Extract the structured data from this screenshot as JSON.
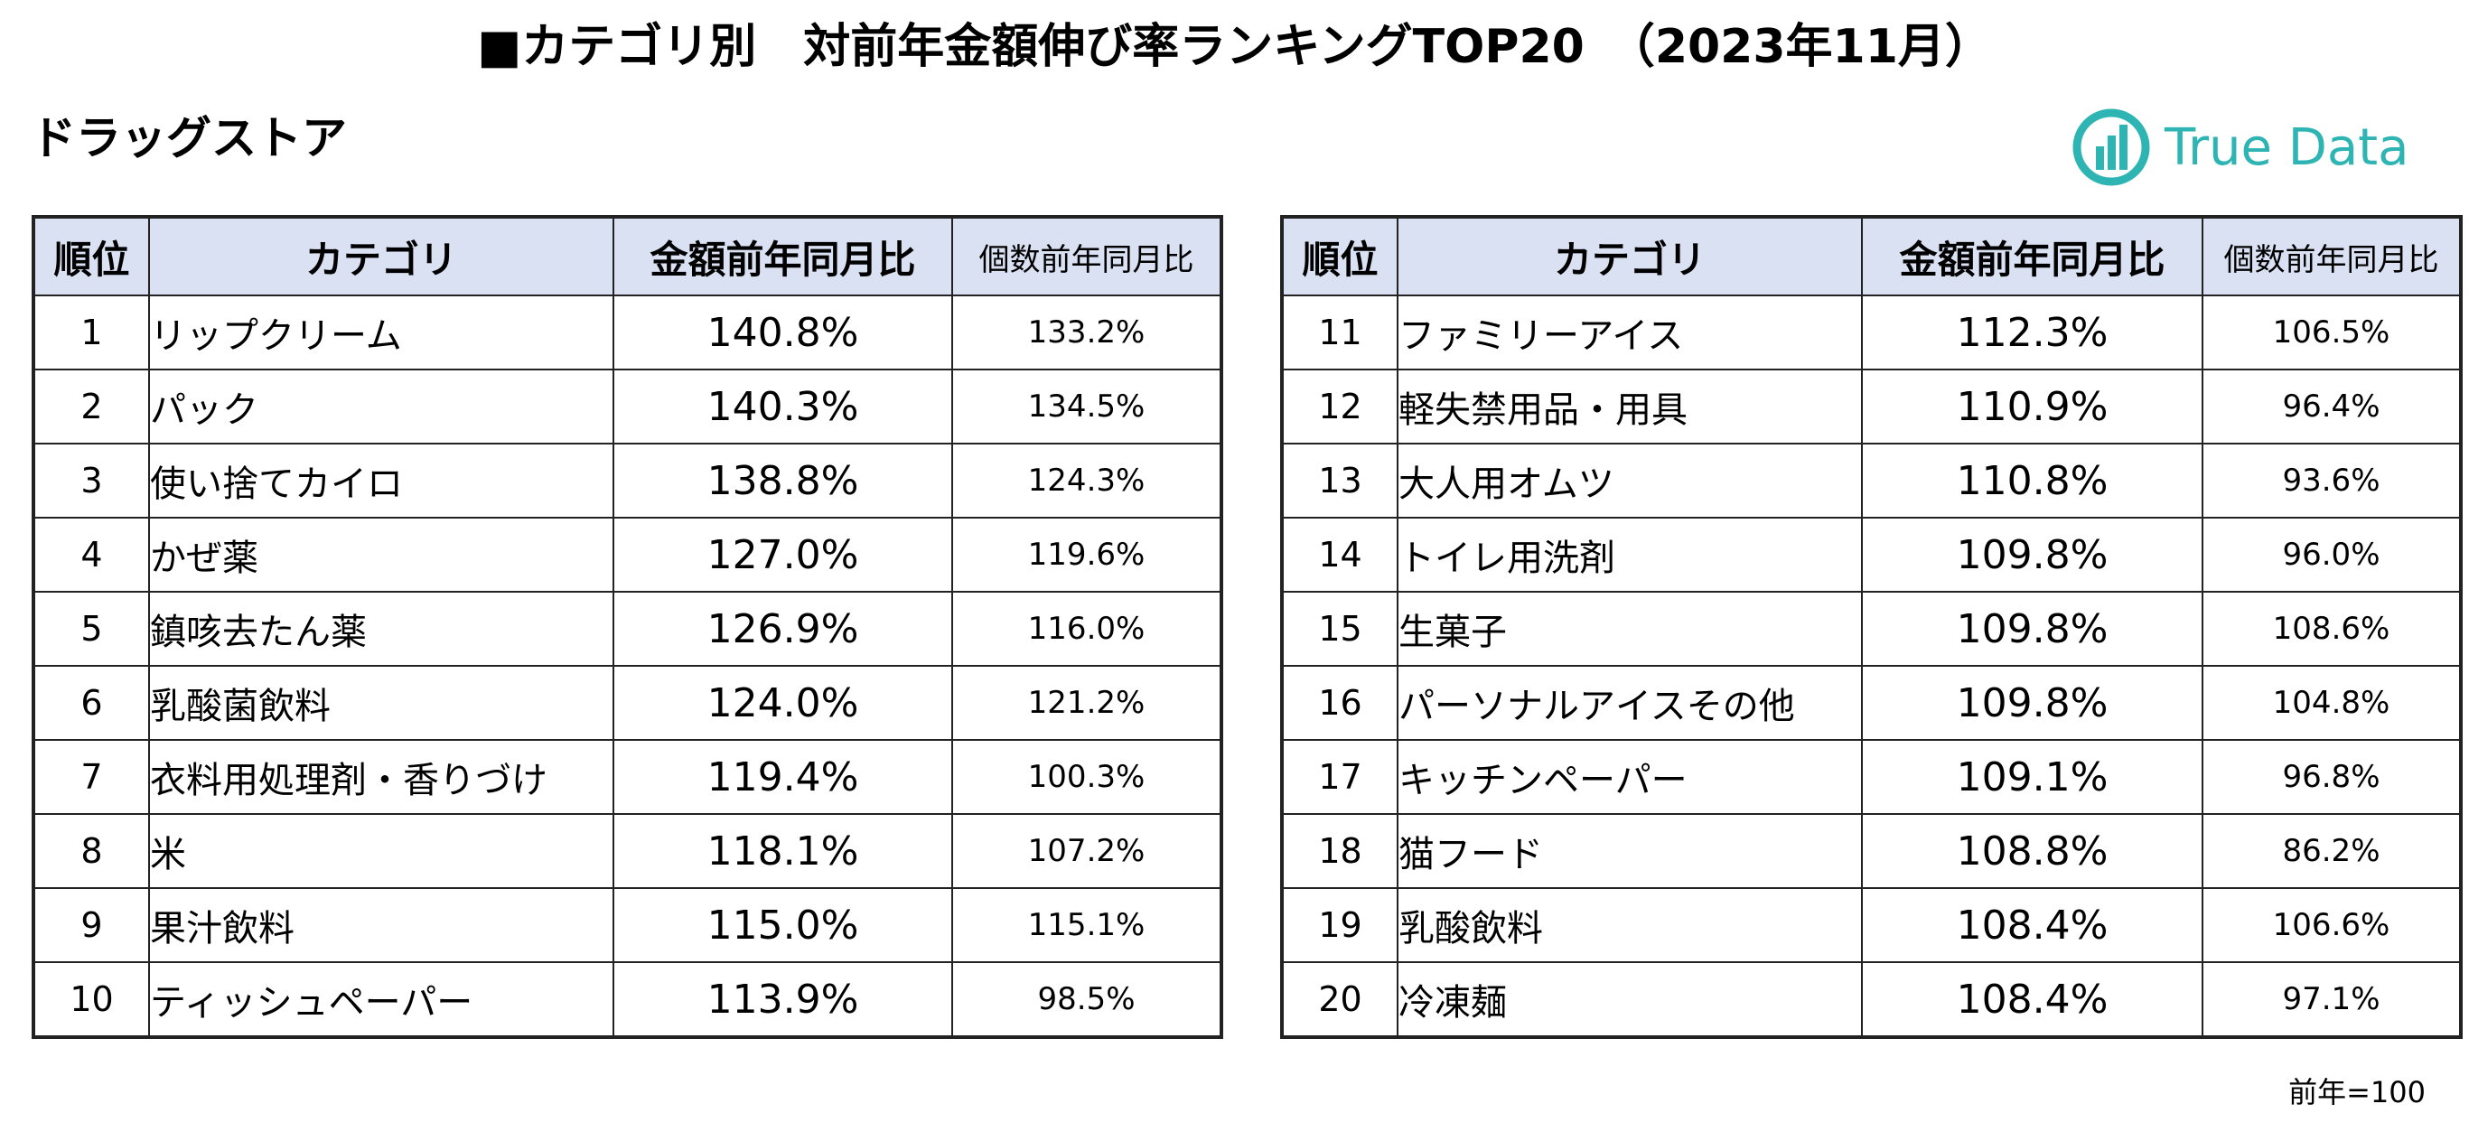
{
  "title": "■カテゴリ別　対前年金額伸び率ランキングTOP20　（2023年11月）",
  "subtitle": "ドラッグストア",
  "logo": {
    "text": "True Data",
    "color": "#2fb4b4"
  },
  "header_color": "#d9e1f2",
  "columns": {
    "rank": "順位",
    "category": "カテゴリ",
    "amount_yoy": "金額前年同月比",
    "count_yoy": "個数前年同月比"
  },
  "left_rows": [
    {
      "rank": "1",
      "category": "リップクリーム",
      "amount": "140.8%",
      "count": "133.2%"
    },
    {
      "rank": "2",
      "category": "パック",
      "amount": "140.3%",
      "count": "134.5%"
    },
    {
      "rank": "3",
      "category": "使い捨てカイロ",
      "amount": "138.8%",
      "count": "124.3%"
    },
    {
      "rank": "4",
      "category": "かぜ薬",
      "amount": "127.0%",
      "count": "119.6%"
    },
    {
      "rank": "5",
      "category": "鎮咳去たん薬",
      "amount": "126.9%",
      "count": "116.0%"
    },
    {
      "rank": "6",
      "category": "乳酸菌飲料",
      "amount": "124.0%",
      "count": "121.2%"
    },
    {
      "rank": "7",
      "category": "衣料用処理剤・香りづけ",
      "amount": "119.4%",
      "count": "100.3%"
    },
    {
      "rank": "8",
      "category": "米",
      "amount": "118.1%",
      "count": "107.2%"
    },
    {
      "rank": "9",
      "category": "果汁飲料",
      "amount": "115.0%",
      "count": "115.1%"
    },
    {
      "rank": "10",
      "category": "ティッシュペーパー",
      "amount": "113.9%",
      "count": "98.5%"
    }
  ],
  "right_rows": [
    {
      "rank": "11",
      "category": "ファミリーアイス",
      "amount": "112.3%",
      "count": "106.5%"
    },
    {
      "rank": "12",
      "category": "軽失禁用品・用具",
      "amount": "110.9%",
      "count": "96.4%"
    },
    {
      "rank": "13",
      "category": "大人用オムツ",
      "amount": "110.8%",
      "count": "93.6%"
    },
    {
      "rank": "14",
      "category": "トイレ用洗剤",
      "amount": "109.8%",
      "count": "96.0%"
    },
    {
      "rank": "15",
      "category": "生菓子",
      "amount": "109.8%",
      "count": "108.6%"
    },
    {
      "rank": "16",
      "category": "パーソナルアイスその他",
      "amount": "109.8%",
      "count": "104.8%"
    },
    {
      "rank": "17",
      "category": "キッチンペーパー",
      "amount": "109.1%",
      "count": "96.8%"
    },
    {
      "rank": "18",
      "category": "猫フード",
      "amount": "108.8%",
      "count": "86.2%"
    },
    {
      "rank": "19",
      "category": "乳酸飲料",
      "amount": "108.4%",
      "count": "106.6%"
    },
    {
      "rank": "20",
      "category": "冷凍麺",
      "amount": "108.4%",
      "count": "97.1%"
    }
  ],
  "note": "前年=100"
}
